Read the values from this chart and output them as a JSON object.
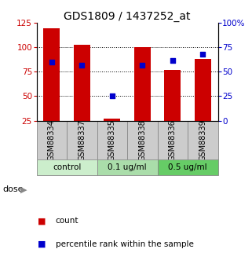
{
  "title": "GDS1809 / 1437252_at",
  "samples": [
    "GSM88334",
    "GSM88337",
    "GSM88335",
    "GSM88338",
    "GSM88336",
    "GSM88339"
  ],
  "bar_values": [
    120,
    103,
    27,
    100,
    77,
    88
  ],
  "dot_values": [
    60,
    57,
    25,
    57,
    62,
    68
  ],
  "bar_color": "#cc0000",
  "dot_color": "#0000cc",
  "ylim_left": [
    25,
    125
  ],
  "ylim_right": [
    0,
    100
  ],
  "yticks_left": [
    25,
    50,
    75,
    100,
    125
  ],
  "yticks_right": [
    0,
    25,
    50,
    75,
    100
  ],
  "ytick_labels_right": [
    "0",
    "25",
    "50",
    "75",
    "100%"
  ],
  "groups": [
    {
      "label": "control",
      "samples": [
        0,
        1
      ],
      "color": "#cceecc"
    },
    {
      "label": "0.1 ug/ml",
      "samples": [
        2,
        3
      ],
      "color": "#aaddaa"
    },
    {
      "label": "0.5 ug/ml",
      "samples": [
        4,
        5
      ],
      "color": "#66cc66"
    }
  ],
  "dose_label": "dose",
  "legend_count": "count",
  "legend_pct": "percentile rank within the sample",
  "bar_width": 0.55,
  "sample_bg_color": "#cccccc",
  "title_fontsize": 10,
  "tick_fontsize": 7.5,
  "label_fontsize": 7
}
